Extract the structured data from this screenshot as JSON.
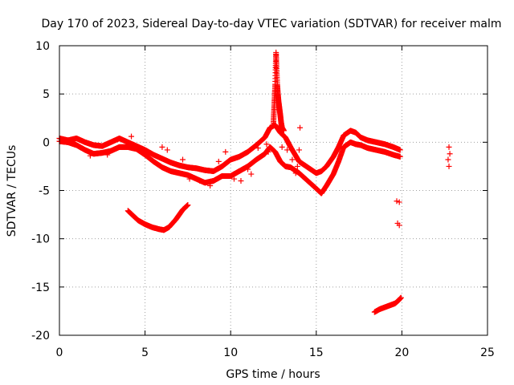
{
  "chart_data": {
    "type": "scatter",
    "title": "Day 170 of 2023, Sidereal Day-to-day VTEC variation (SDTVAR) for receiver malm",
    "xlabel": "GPS time / hours",
    "ylabel": "SDTVAR / TECUs",
    "xlim": [
      0,
      25
    ],
    "ylim": [
      -20,
      10
    ],
    "xticks": [
      0,
      5,
      10,
      15,
      20,
      25
    ],
    "yticks": [
      -20,
      -15,
      -10,
      -5,
      0,
      5,
      10
    ],
    "xtick_labels": [
      "0",
      "5",
      "10",
      "15",
      "20",
      "25"
    ],
    "ytick_labels": [
      "-20",
      "-15",
      "-10",
      "-5",
      "0",
      "5",
      "10"
    ],
    "grid": true,
    "marker": "+",
    "color": "#ff0000",
    "series": [
      {
        "name": "main-band-upper",
        "points": [
          [
            0.0,
            0.4
          ],
          [
            0.5,
            0.2
          ],
          [
            1.0,
            0.4
          ],
          [
            1.5,
            0.0
          ],
          [
            2.0,
            -0.3
          ],
          [
            2.5,
            -0.4
          ],
          [
            3.0,
            0.0
          ],
          [
            3.5,
            0.4
          ],
          [
            4.0,
            0.0
          ],
          [
            4.5,
            -0.4
          ],
          [
            5.0,
            -0.8
          ],
          [
            5.5,
            -1.3
          ],
          [
            6.0,
            -1.7
          ],
          [
            6.5,
            -2.1
          ],
          [
            7.0,
            -2.4
          ],
          [
            7.5,
            -2.6
          ],
          [
            8.0,
            -2.7
          ],
          [
            8.5,
            -2.9
          ],
          [
            9.0,
            -3.0
          ],
          [
            9.5,
            -2.5
          ],
          [
            10.0,
            -1.8
          ],
          [
            10.5,
            -1.5
          ],
          [
            11.0,
            -1.0
          ],
          [
            11.5,
            -0.3
          ],
          [
            12.0,
            0.5
          ],
          [
            12.3,
            1.5
          ],
          [
            12.6,
            1.8
          ],
          [
            12.9,
            1.0
          ],
          [
            13.2,
            0.5
          ],
          [
            13.5,
            -0.5
          ],
          [
            14.0,
            -2.0
          ],
          [
            14.5,
            -2.6
          ],
          [
            15.0,
            -3.2
          ],
          [
            15.3,
            -3.0
          ],
          [
            15.6,
            -2.5
          ],
          [
            16.0,
            -1.5
          ],
          [
            16.3,
            -0.5
          ],
          [
            16.6,
            0.7
          ],
          [
            17.0,
            1.2
          ],
          [
            17.3,
            1.0
          ],
          [
            17.6,
            0.5
          ],
          [
            18.0,
            0.2
          ],
          [
            18.5,
            0.0
          ],
          [
            19.0,
            -0.2
          ],
          [
            19.5,
            -0.5
          ],
          [
            19.9,
            -0.8
          ]
        ]
      },
      {
        "name": "main-band-lower",
        "points": [
          [
            0.0,
            0.1
          ],
          [
            0.5,
            0.0
          ],
          [
            1.0,
            -0.3
          ],
          [
            1.5,
            -0.8
          ],
          [
            2.0,
            -1.2
          ],
          [
            2.5,
            -1.1
          ],
          [
            3.0,
            -0.9
          ],
          [
            3.5,
            -0.5
          ],
          [
            4.0,
            -0.5
          ],
          [
            4.5,
            -0.7
          ],
          [
            5.0,
            -1.3
          ],
          [
            5.5,
            -2.0
          ],
          [
            6.0,
            -2.6
          ],
          [
            6.5,
            -3.0
          ],
          [
            7.0,
            -3.2
          ],
          [
            7.5,
            -3.4
          ],
          [
            8.0,
            -3.8
          ],
          [
            8.5,
            -4.2
          ],
          [
            9.0,
            -4.0
          ],
          [
            9.5,
            -3.5
          ],
          [
            10.0,
            -3.5
          ],
          [
            10.5,
            -3.0
          ],
          [
            11.0,
            -2.5
          ],
          [
            11.5,
            -1.8
          ],
          [
            12.0,
            -1.2
          ],
          [
            12.3,
            -0.5
          ],
          [
            12.6,
            -1.0
          ],
          [
            12.9,
            -2.0
          ],
          [
            13.2,
            -2.5
          ],
          [
            13.5,
            -2.6
          ],
          [
            14.0,
            -3.2
          ],
          [
            14.5,
            -4.0
          ],
          [
            15.0,
            -4.8
          ],
          [
            15.3,
            -5.3
          ],
          [
            15.6,
            -4.5
          ],
          [
            16.0,
            -3.3
          ],
          [
            16.3,
            -2.0
          ],
          [
            16.6,
            -0.5
          ],
          [
            17.0,
            0.0
          ],
          [
            17.3,
            -0.2
          ],
          [
            17.6,
            -0.3
          ],
          [
            18.0,
            -0.6
          ],
          [
            18.5,
            -0.8
          ],
          [
            19.0,
            -1.0
          ],
          [
            19.5,
            -1.3
          ],
          [
            19.9,
            -1.5
          ]
        ]
      },
      {
        "name": "sparse-scatter",
        "points": [
          [
            1.8,
            -1.4
          ],
          [
            2.8,
            -1.3
          ],
          [
            4.2,
            0.6
          ],
          [
            6.0,
            -0.5
          ],
          [
            6.3,
            -0.8
          ],
          [
            7.2,
            -1.8
          ],
          [
            7.6,
            -3.8
          ],
          [
            8.2,
            -4.0
          ],
          [
            8.8,
            -4.5
          ],
          [
            9.3,
            -2.0
          ],
          [
            9.7,
            -1.0
          ],
          [
            10.2,
            -3.8
          ],
          [
            10.6,
            -4.0
          ],
          [
            11.0,
            -2.8
          ],
          [
            11.2,
            -3.3
          ],
          [
            11.6,
            -0.6
          ],
          [
            12.1,
            -0.2
          ],
          [
            12.2,
            -1.0
          ],
          [
            13.0,
            -0.5
          ],
          [
            13.3,
            -0.8
          ],
          [
            13.6,
            -1.8
          ],
          [
            13.8,
            -3.2
          ],
          [
            13.9,
            -2.5
          ],
          [
            14.05,
            1.5
          ],
          [
            14.0,
            -0.8
          ]
        ]
      },
      {
        "name": "spike",
        "points": [
          [
            12.5,
            2.0
          ],
          [
            12.55,
            4.0
          ],
          [
            12.6,
            6.0
          ],
          [
            12.62,
            7.5
          ],
          [
            12.65,
            9.3
          ],
          [
            12.68,
            8.0
          ],
          [
            12.72,
            6.0
          ],
          [
            12.76,
            5.0
          ],
          [
            12.8,
            4.2
          ],
          [
            12.85,
            3.5
          ],
          [
            12.9,
            2.8
          ],
          [
            12.95,
            2.0
          ],
          [
            13.0,
            1.5
          ],
          [
            13.1,
            1.2
          ]
        ]
      },
      {
        "name": "low-arc",
        "points": [
          [
            4.0,
            -7.1
          ],
          [
            4.3,
            -7.6
          ],
          [
            4.6,
            -8.1
          ],
          [
            5.0,
            -8.5
          ],
          [
            5.4,
            -8.8
          ],
          [
            5.8,
            -9.0
          ],
          [
            6.1,
            -9.1
          ],
          [
            6.4,
            -8.8
          ],
          [
            6.8,
            -8.0
          ],
          [
            7.2,
            -7.0
          ],
          [
            7.5,
            -6.5
          ]
        ]
      },
      {
        "name": "deep-tail",
        "points": [
          [
            18.4,
            -17.6
          ],
          [
            18.7,
            -17.3
          ],
          [
            19.0,
            -17.1
          ],
          [
            19.3,
            -16.9
          ],
          [
            19.6,
            -16.7
          ],
          [
            19.8,
            -16.4
          ],
          [
            19.95,
            -16.1
          ]
        ]
      },
      {
        "name": "isolated",
        "points": [
          [
            19.7,
            -6.1
          ],
          [
            19.85,
            -6.2
          ],
          [
            19.75,
            -8.4
          ],
          [
            19.85,
            -8.6
          ],
          [
            22.75,
            -0.5
          ],
          [
            22.8,
            -1.2
          ],
          [
            22.7,
            -1.8
          ],
          [
            22.75,
            -2.5
          ]
        ]
      }
    ]
  }
}
